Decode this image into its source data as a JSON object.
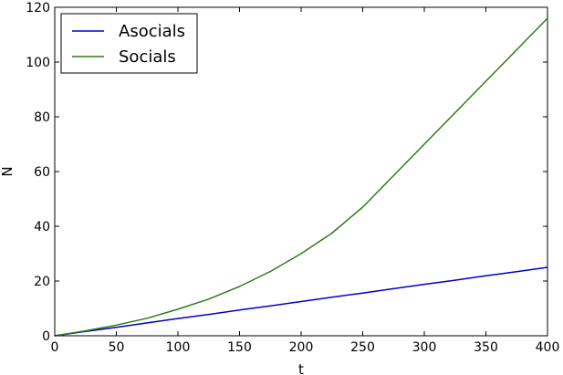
{
  "chart_data": {
    "type": "line",
    "xlabel": "t",
    "ylabel": "N",
    "xlim": [
      0,
      400
    ],
    "ylim": [
      0,
      120
    ],
    "xticks": [
      0,
      50,
      100,
      150,
      200,
      250,
      300,
      350,
      400
    ],
    "yticks": [
      0,
      20,
      40,
      60,
      80,
      100,
      120
    ],
    "grid": false,
    "legend_position": "top-left",
    "x": [
      0,
      25,
      50,
      75,
      100,
      125,
      150,
      175,
      200,
      225,
      250,
      275,
      300,
      325,
      350,
      375,
      400
    ],
    "series": [
      {
        "name": "Asocials",
        "color": "#0000cc",
        "values": [
          0,
          1.6,
          3.1,
          4.7,
          6.3,
          7.8,
          9.4,
          10.9,
          12.5,
          14.1,
          15.6,
          17.2,
          18.8,
          20.3,
          21.9,
          23.4,
          25.0
        ]
      },
      {
        "name": "Socials",
        "color": "#2e7a1a",
        "values": [
          0,
          1.8,
          3.9,
          6.4,
          9.7,
          13.4,
          18.0,
          23.5,
          30.0,
          37.5,
          47.0,
          58.5,
          70.0,
          81.5,
          93.0,
          104.5,
          116.0
        ]
      }
    ]
  }
}
